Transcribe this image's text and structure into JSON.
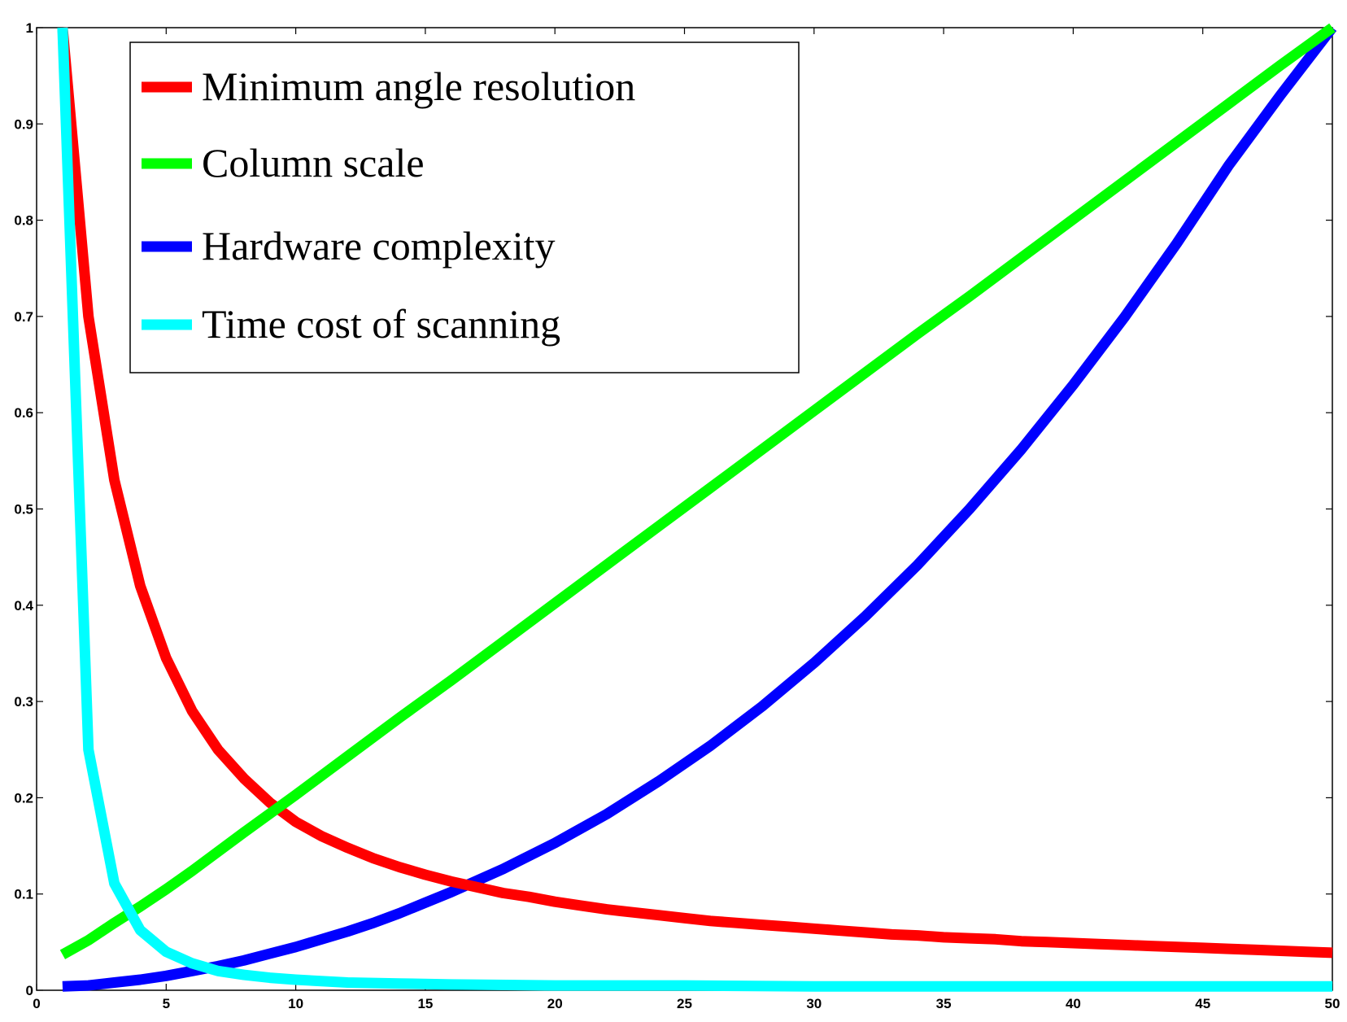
{
  "chart_data": {
    "type": "line",
    "title": "",
    "xlabel": "",
    "ylabel": "",
    "xlim": [
      0,
      50
    ],
    "ylim": [
      0,
      1
    ],
    "grid": false,
    "legend_position": "top-left",
    "x_ticks": [
      0,
      5,
      10,
      15,
      20,
      25,
      30,
      35,
      40,
      45,
      50
    ],
    "y_ticks": [
      0,
      0.1,
      0.2,
      0.3,
      0.4,
      0.5,
      0.6,
      0.7,
      0.8,
      0.9,
      1
    ],
    "x_tick_labels": [
      "0",
      "5",
      "10",
      "15",
      "20",
      "25",
      "30",
      "35",
      "40",
      "45",
      "50"
    ],
    "y_tick_labels": [
      "0",
      "0.1",
      "0.2",
      "0.3",
      "0.4",
      "0.5",
      "0.6",
      "0.7",
      "0.8",
      "0.9",
      "1"
    ],
    "series": [
      {
        "name": "Minimum angle resolution",
        "color": "#ff0000",
        "x": [
          1,
          2,
          3,
          4,
          5,
          6,
          7,
          8,
          9,
          10,
          11,
          12,
          13,
          14,
          15,
          16,
          17,
          18,
          19,
          20,
          21,
          22,
          23,
          24,
          25,
          26,
          27,
          28,
          29,
          30,
          31,
          32,
          33,
          34,
          35,
          36,
          37,
          38,
          39,
          40,
          41,
          42,
          43,
          44,
          45,
          46,
          47,
          48,
          49,
          50
        ],
        "y": [
          1.0,
          0.7,
          0.53,
          0.42,
          0.345,
          0.29,
          0.25,
          0.22,
          0.195,
          0.175,
          0.16,
          0.148,
          0.137,
          0.128,
          0.12,
          0.113,
          0.107,
          0.101,
          0.097,
          0.092,
          0.088,
          0.084,
          0.081,
          0.078,
          0.075,
          0.072,
          0.07,
          0.068,
          0.066,
          0.064,
          0.062,
          0.06,
          0.058,
          0.057,
          0.055,
          0.054,
          0.053,
          0.051,
          0.05,
          0.049,
          0.048,
          0.047,
          0.046,
          0.045,
          0.044,
          0.043,
          0.042,
          0.041,
          0.04,
          0.039
        ]
      },
      {
        "name": "Column scale",
        "color": "#00ff00",
        "x": [
          1,
          2,
          3,
          4,
          5,
          6,
          8,
          10,
          12,
          14,
          16,
          18,
          20,
          22,
          24,
          26,
          28,
          30,
          32,
          34,
          36,
          38,
          40,
          42,
          44,
          46,
          48,
          50
        ],
        "y": [
          0.037,
          0.052,
          0.07,
          0.087,
          0.105,
          0.124,
          0.164,
          0.203,
          0.243,
          0.283,
          0.322,
          0.362,
          0.402,
          0.442,
          0.482,
          0.522,
          0.562,
          0.602,
          0.642,
          0.682,
          0.721,
          0.761,
          0.801,
          0.841,
          0.881,
          0.921,
          0.961,
          1.0
        ]
      },
      {
        "name": "Hardware complexity",
        "color": "#0000ff",
        "x": [
          1,
          2,
          3,
          4,
          5,
          6,
          7,
          8,
          9,
          10,
          11,
          12,
          13,
          14,
          15,
          16,
          18,
          20,
          22,
          24,
          26,
          28,
          30,
          32,
          34,
          36,
          38,
          40,
          42,
          44,
          46,
          48,
          50
        ],
        "y": [
          0.004,
          0.005,
          0.008,
          0.011,
          0.015,
          0.02,
          0.025,
          0.031,
          0.038,
          0.045,
          0.053,
          0.061,
          0.07,
          0.08,
          0.091,
          0.102,
          0.126,
          0.153,
          0.183,
          0.217,
          0.254,
          0.295,
          0.34,
          0.389,
          0.442,
          0.5,
          0.562,
          0.629,
          0.7,
          0.776,
          0.857,
          0.93,
          1.0
        ]
      },
      {
        "name": "Time cost of scanning",
        "color": "#00ffff",
        "x": [
          1,
          2,
          3,
          4,
          5,
          6,
          7,
          8,
          9,
          10,
          12,
          14,
          16,
          20,
          25,
          30,
          35,
          40,
          45,
          50
        ],
        "y": [
          1.0,
          0.25,
          0.111,
          0.0625,
          0.04,
          0.028,
          0.02,
          0.016,
          0.013,
          0.011,
          0.008,
          0.007,
          0.006,
          0.005,
          0.005,
          0.004,
          0.004,
          0.004,
          0.004,
          0.004
        ]
      }
    ]
  }
}
